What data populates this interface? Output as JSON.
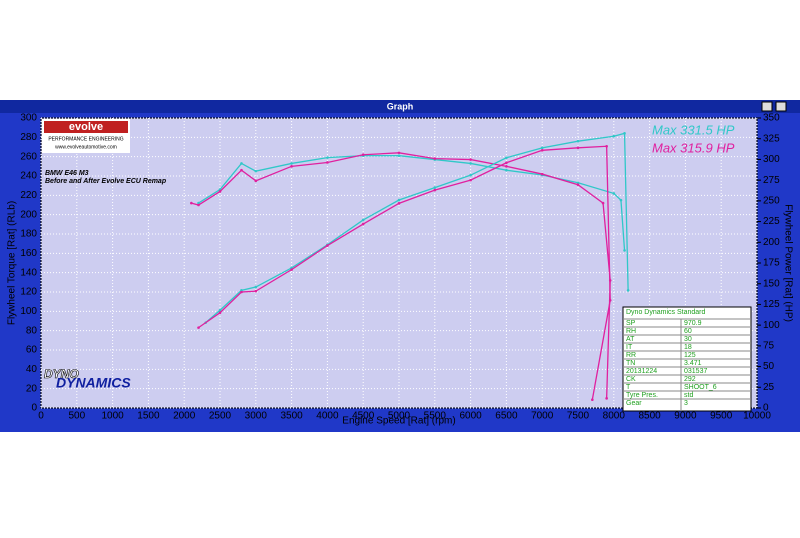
{
  "window_title": "Graph",
  "chart_data": {
    "type": "line",
    "xlabel": "Engine Speed [Rat] (rpm)",
    "ylabel": "Flywheel Torque [Rat] (RLb)",
    "y2label": "Flywheel Power [Rat] (HP)",
    "xlim": [
      0,
      10000
    ],
    "xticks": [
      0,
      500,
      1000,
      1500,
      2000,
      2500,
      3000,
      3500,
      4000,
      4500,
      5000,
      5500,
      6000,
      6500,
      7000,
      7500,
      8000,
      8500,
      9000,
      9500,
      10000
    ],
    "ylim": [
      0,
      300
    ],
    "yticks": [
      0,
      20,
      40,
      60,
      80,
      100,
      120,
      140,
      160,
      180,
      200,
      220,
      240,
      260,
      280,
      300
    ],
    "y2lim": [
      0,
      350
    ],
    "y2ticks": [
      0,
      25,
      50,
      75,
      100,
      125,
      150,
      175,
      200,
      225,
      250,
      275,
      300,
      325,
      350
    ],
    "grid": true,
    "series": [
      {
        "color": "#30c8c8",
        "axis": "y",
        "x": [
          2200,
          2500,
          2800,
          3000,
          3500,
          4000,
          4500,
          5000,
          5500,
          6000,
          6500,
          7000,
          7500,
          8000,
          8100,
          8150
        ],
        "values": [
          212,
          226,
          253,
          245,
          253,
          259,
          261,
          261,
          257,
          253,
          246,
          241,
          233,
          222,
          215,
          163
        ]
      },
      {
        "color": "#e0209f",
        "axis": "y",
        "x": [
          2100,
          2200,
          2500,
          2800,
          3000,
          3500,
          4000,
          4500,
          5000,
          5500,
          6000,
          6500,
          7000,
          7500,
          7850,
          7950,
          7900
        ],
        "values": [
          212,
          210,
          224,
          246,
          235,
          250,
          254,
          262,
          264,
          258,
          257,
          250,
          242,
          231,
          212,
          132,
          10
        ]
      },
      {
        "color": "#30c8c8",
        "axis": "y2",
        "x": [
          2300,
          2500,
          2800,
          3000,
          3500,
          4000,
          4500,
          5000,
          5500,
          6000,
          6500,
          7000,
          7500,
          8000,
          8150,
          8200
        ],
        "values": [
          103,
          118,
          142,
          146,
          169,
          197,
          227,
          251,
          266,
          281,
          302,
          314,
          322,
          328,
          331.5,
          142
        ]
      },
      {
        "color": "#e0209f",
        "axis": "y2",
        "x": [
          2200,
          2500,
          2800,
          3000,
          3500,
          4000,
          4500,
          5000,
          5500,
          6000,
          6500,
          7000,
          7500,
          7900,
          7950,
          7700
        ],
        "values": [
          97,
          115,
          140,
          141,
          167,
          196,
          222,
          247,
          263,
          275,
          296,
          311,
          314,
          315.9,
          130,
          10
        ]
      }
    ],
    "annotations": [
      {
        "text": "Max 331.5 HP",
        "color": "#30c8c8"
      },
      {
        "text": "Max 315.9 HP",
        "color": "#e0209f"
      },
      {
        "text": "BMW E46 M3",
        "color": "#000000"
      },
      {
        "text": "Before and After Evolve ECU Remap",
        "color": "#000000"
      }
    ]
  },
  "logo": {
    "name": "evolve",
    "tagline": "PERFORMANCE ENGINEERING",
    "url": "www.evolveautomotive.com"
  },
  "brand": {
    "first": "DYNO",
    "second": "DYNAMICS"
  },
  "info_table": {
    "title": "Dyno Dynamics Standard",
    "rows": [
      [
        "SP",
        "970.9"
      ],
      [
        "RH",
        "60"
      ],
      [
        "AT",
        "30"
      ],
      [
        "IT",
        "18"
      ],
      [
        "RR",
        "125"
      ],
      [
        "TN",
        "3.471"
      ],
      [
        "20131224",
        "031537"
      ],
      [
        "CK",
        "292"
      ],
      [
        "T",
        "SHOOT_6"
      ],
      [
        "Tyre Pres.",
        "std"
      ],
      [
        "Gear",
        "3"
      ]
    ]
  }
}
